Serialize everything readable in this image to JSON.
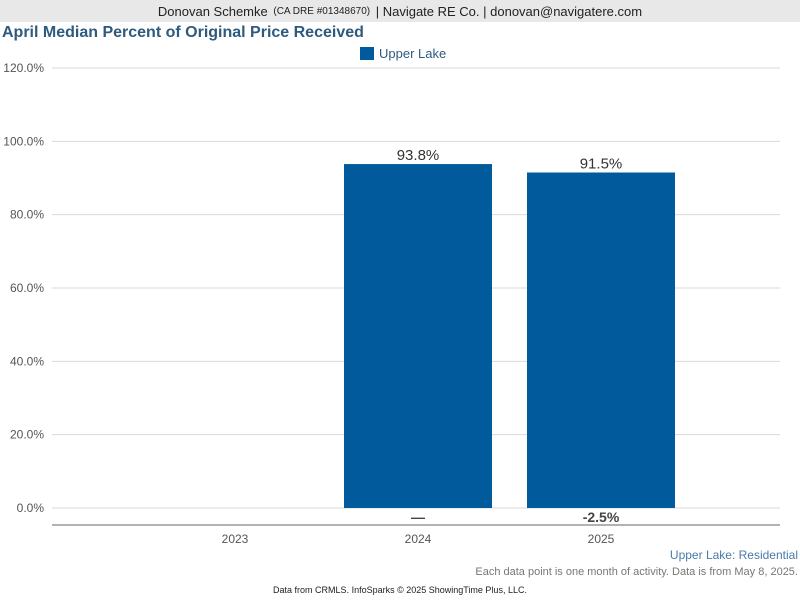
{
  "header": {
    "agent_name": "Donovan Schemke",
    "license": "(CA DRE #01348670)",
    "rest": "| Navigate RE Co. | donovan@navigatere.com"
  },
  "chart_data": {
    "type": "bar",
    "title": "April Median Percent of Original Price Received",
    "categories": [
      "2023",
      "2024",
      "2025"
    ],
    "series": [
      {
        "name": "Upper Lake",
        "values": [
          null,
          93.8,
          91.5
        ],
        "color": "#005a9c"
      }
    ],
    "value_labels": [
      "",
      "93.8%",
      "91.5%"
    ],
    "change_labels": [
      "",
      "—",
      "-2.5%"
    ],
    "yticks": [
      "0.0%",
      "20.0%",
      "40.0%",
      "60.0%",
      "80.0%",
      "100.0%",
      "120.0%"
    ],
    "ylim": [
      0,
      120
    ],
    "grid": true,
    "legend": "top-center",
    "xlabel": "",
    "ylabel": ""
  },
  "footer": {
    "series_note": "Upper Lake: Residential",
    "data_note": "Each data point is one month of activity. Data is from May 8, 2025.",
    "credit": "Data from CRMLS. InfoSparks © 2025 ShowingTime Plus, LLC."
  }
}
